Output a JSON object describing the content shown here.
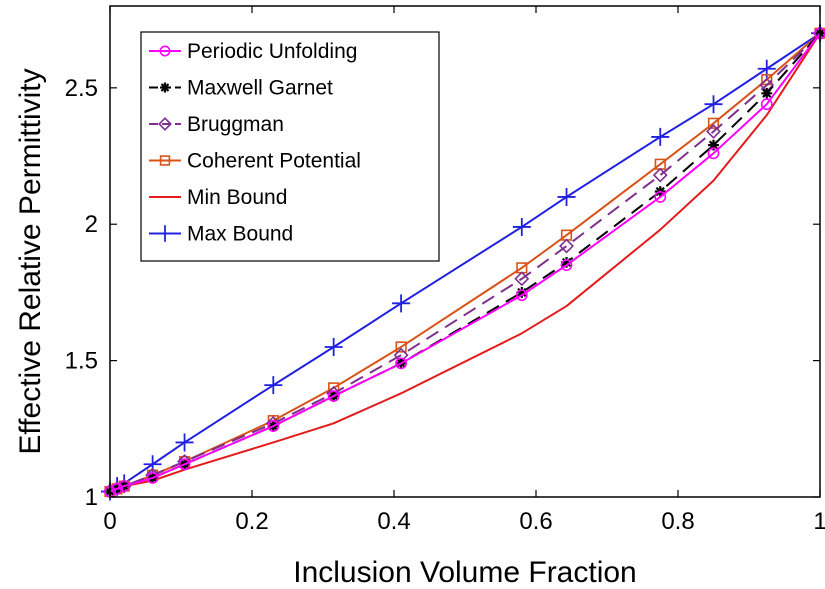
{
  "chart_data": {
    "type": "line",
    "title": "",
    "xlabel": "Inclusion Volume Fraction",
    "ylabel": "Effective Relative Permittivity",
    "xlim": [
      0,
      1
    ],
    "ylim": [
      1,
      2.8
    ],
    "xticks": [
      0,
      0.2,
      0.4,
      0.6,
      0.8,
      1
    ],
    "xtick_labels": [
      "0",
      "0.2",
      "0.4",
      "0.6",
      "0.8",
      "1"
    ],
    "yticks": [
      1,
      1.5,
      2,
      2.5
    ],
    "ytick_labels": [
      "1",
      "1.5",
      "2",
      "2.5"
    ],
    "grid": false,
    "legend_position": "top-left",
    "series": [
      {
        "name": "Periodic Unfolding",
        "color": "#ff00ff",
        "line_style": "solid",
        "marker": "circle",
        "x": [
          0,
          0.01,
          0.02,
          0.06,
          0.105,
          0.23,
          0.315,
          0.41,
          0.58,
          0.643,
          0.775,
          0.85,
          0.925,
          1.0
        ],
        "y": [
          1.02,
          1.03,
          1.04,
          1.07,
          1.12,
          1.26,
          1.37,
          1.49,
          1.74,
          1.85,
          2.1,
          2.26,
          2.44,
          2.7
        ]
      },
      {
        "name": "Maxwell Garnet",
        "color": "#000000",
        "line_style": "dashed",
        "marker": "star",
        "x": [
          0,
          0.01,
          0.02,
          0.06,
          0.105,
          0.23,
          0.315,
          0.41,
          0.58,
          0.643,
          0.775,
          0.85,
          0.925,
          1.0
        ],
        "y": [
          1.02,
          1.03,
          1.04,
          1.07,
          1.12,
          1.26,
          1.37,
          1.49,
          1.75,
          1.86,
          2.12,
          2.29,
          2.48,
          2.7
        ]
      },
      {
        "name": "Bruggman",
        "color": "#7e2f8e",
        "line_style": "dashed",
        "marker": "diamond",
        "x": [
          0,
          0.01,
          0.02,
          0.06,
          0.105,
          0.23,
          0.315,
          0.41,
          0.58,
          0.643,
          0.775,
          0.85,
          0.925,
          1.0
        ],
        "y": [
          1.02,
          1.03,
          1.04,
          1.08,
          1.13,
          1.27,
          1.38,
          1.52,
          1.8,
          1.92,
          2.18,
          2.34,
          2.51,
          2.7
        ]
      },
      {
        "name": "Coherent Potential",
        "color": "#d95319",
        "line_style": "solid",
        "marker": "square",
        "x": [
          0,
          0.01,
          0.02,
          0.06,
          0.105,
          0.23,
          0.315,
          0.41,
          0.58,
          0.643,
          0.775,
          0.85,
          0.925,
          1.0
        ],
        "y": [
          1.02,
          1.03,
          1.04,
          1.08,
          1.13,
          1.28,
          1.4,
          1.55,
          1.84,
          1.96,
          2.22,
          2.37,
          2.53,
          2.7
        ]
      },
      {
        "name": "Min Bound",
        "color": "#e41a1c",
        "line_style": "solid",
        "marker": "none",
        "x": [
          0,
          0.01,
          0.02,
          0.06,
          0.105,
          0.23,
          0.315,
          0.41,
          0.58,
          0.643,
          0.775,
          0.85,
          0.925,
          1.0
        ],
        "y": [
          1.02,
          1.03,
          1.04,
          1.06,
          1.1,
          1.2,
          1.27,
          1.38,
          1.6,
          1.7,
          1.98,
          2.16,
          2.4,
          2.7
        ]
      },
      {
        "name": "Max Bound",
        "color": "#2020e0",
        "line_style": "solid",
        "marker": "plus",
        "x": [
          0,
          0.01,
          0.02,
          0.06,
          0.105,
          0.23,
          0.315,
          0.41,
          0.58,
          0.643,
          0.775,
          0.85,
          0.925,
          1.0
        ],
        "y": [
          1.02,
          1.04,
          1.05,
          1.12,
          1.2,
          1.41,
          1.55,
          1.71,
          1.99,
          2.1,
          2.32,
          2.44,
          2.57,
          2.7
        ]
      }
    ]
  }
}
